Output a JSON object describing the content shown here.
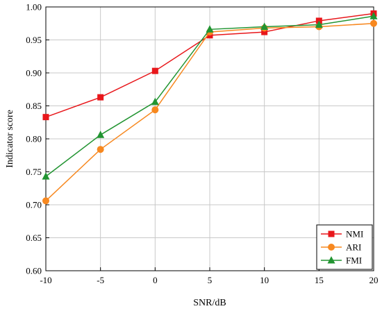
{
  "chart_data": {
    "type": "line",
    "xlabel": "SNR/dB",
    "ylabel": "Indicator score",
    "x": [
      -10,
      -5,
      0,
      5,
      10,
      15,
      20
    ],
    "xlim": [
      -10,
      20
    ],
    "ylim": [
      0.6,
      1.0
    ],
    "xticks": [
      "-10",
      "-5",
      "0",
      "5",
      "10",
      "15",
      "20"
    ],
    "yticks": [
      "0.60",
      "0.65",
      "0.70",
      "0.75",
      "0.80",
      "0.85",
      "0.90",
      "0.95",
      "1.00"
    ],
    "grid": true,
    "legend_position": "bottom-right",
    "series": [
      {
        "name": "NMI",
        "color": "#e8171b",
        "marker": "square",
        "values": [
          0.833,
          0.863,
          0.903,
          0.957,
          0.962,
          0.979,
          0.99
        ]
      },
      {
        "name": "ARI",
        "color": "#f7881f",
        "marker": "circle",
        "values": [
          0.706,
          0.784,
          0.844,
          0.962,
          0.968,
          0.97,
          0.975
        ]
      },
      {
        "name": "FMI",
        "color": "#219431",
        "marker": "triangle",
        "values": [
          0.743,
          0.806,
          0.856,
          0.966,
          0.97,
          0.973,
          0.986
        ]
      }
    ]
  }
}
